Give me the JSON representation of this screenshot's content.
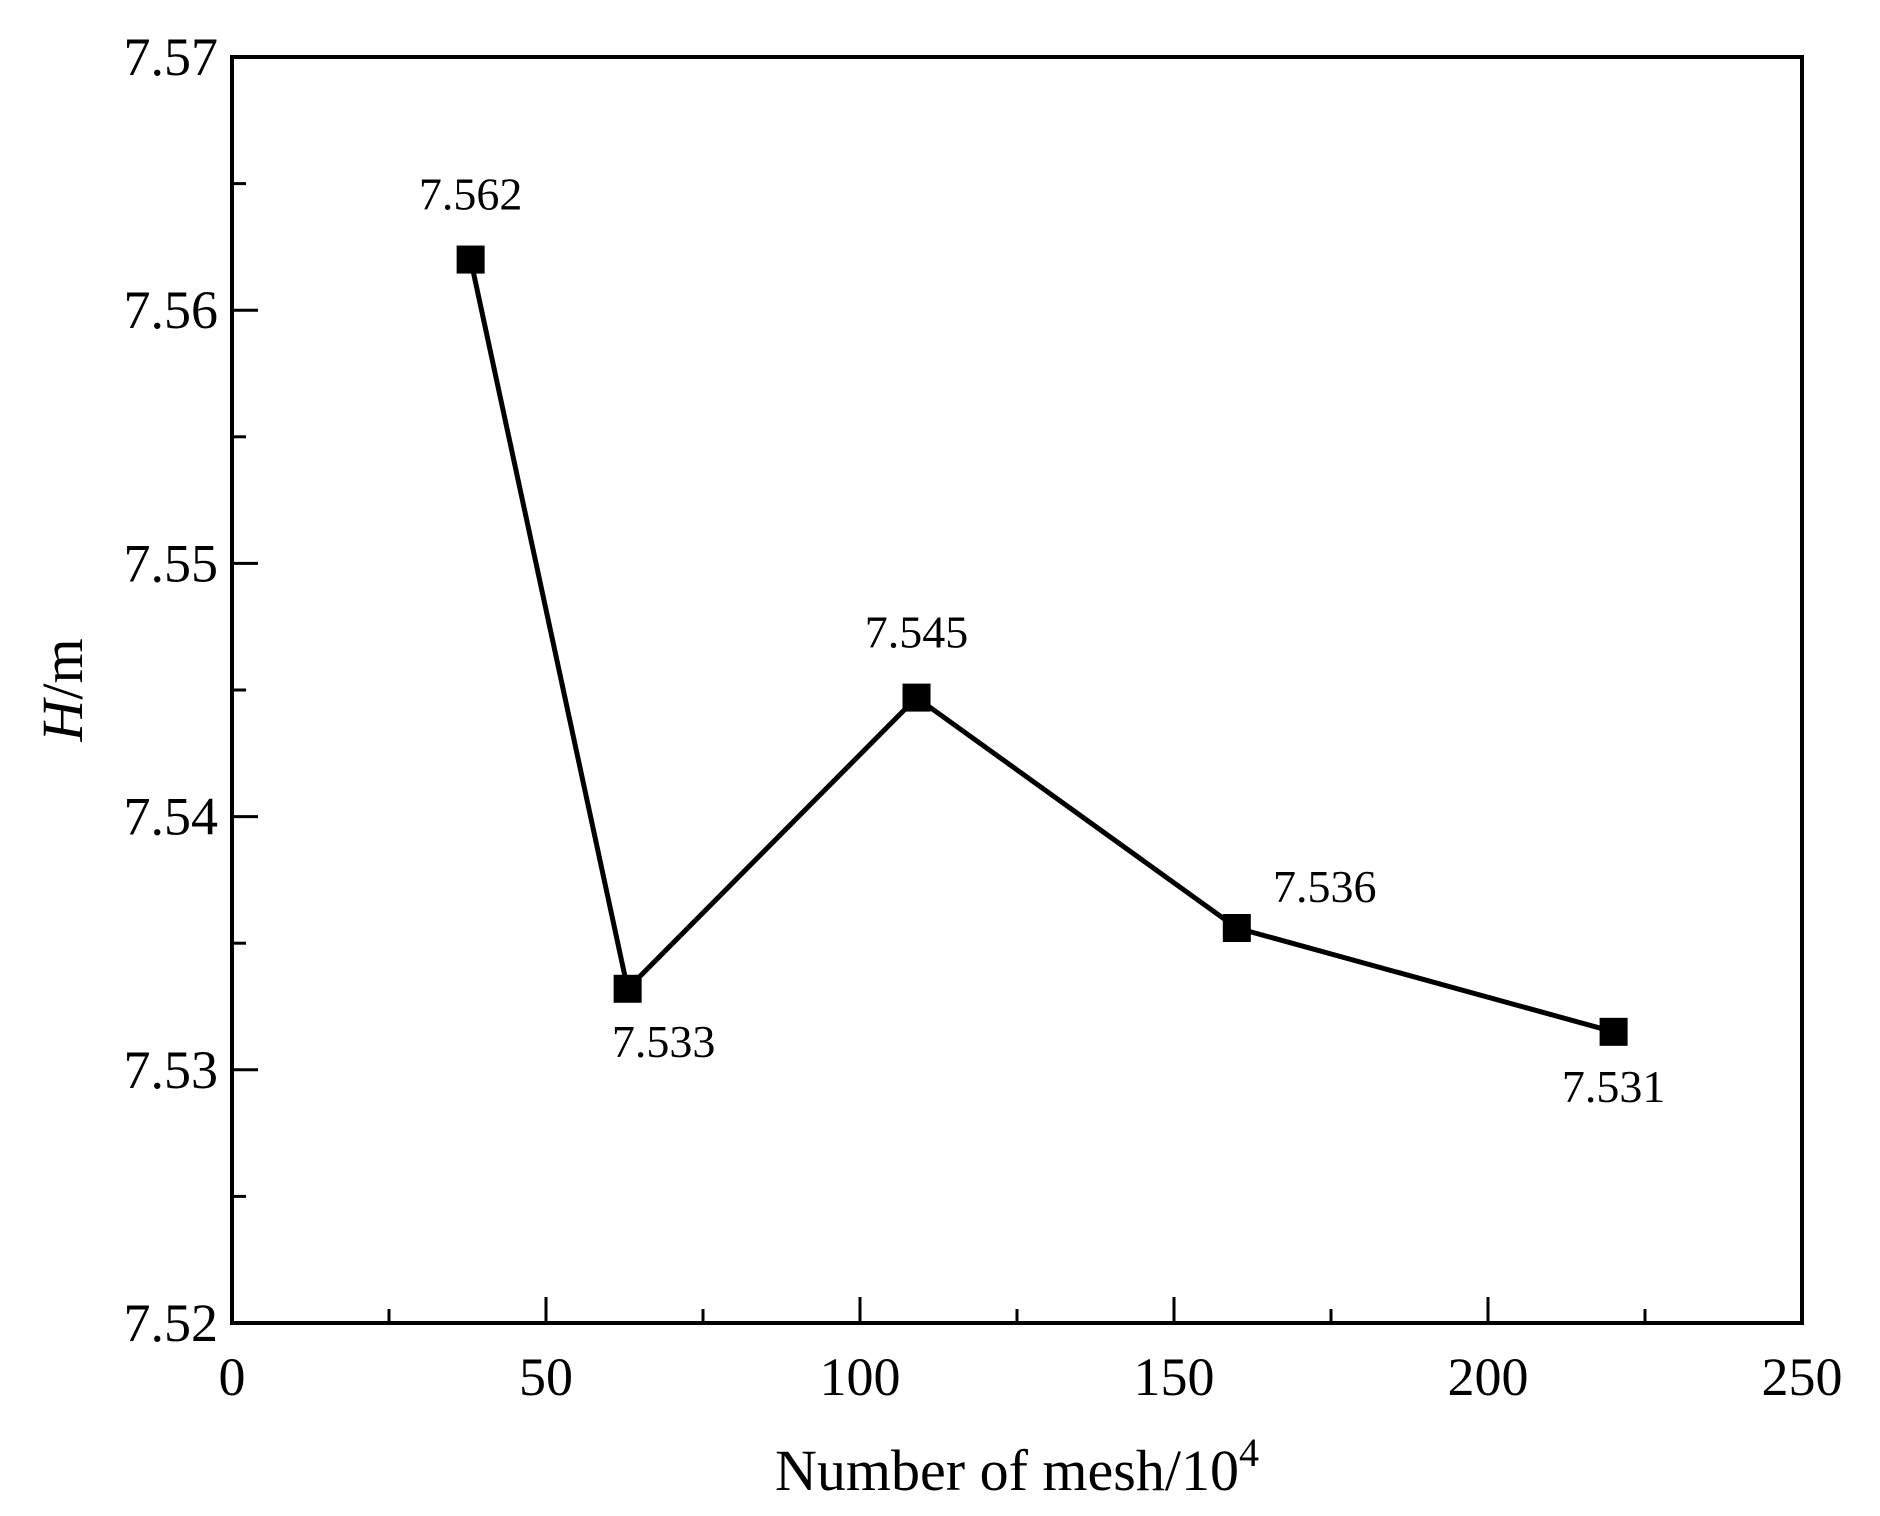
{
  "chart_data": {
    "type": "line",
    "title": "",
    "xlabel_main": "Number of mesh/10",
    "xlabel_sup": "4",
    "ylabel_italic": "H",
    "ylabel_rest": "/m",
    "x": [
      38,
      63,
      109,
      160,
      220
    ],
    "series": [
      {
        "name": "H",
        "values": [
          7.562,
          7.5332,
          7.5447,
          7.5356,
          7.5315
        ],
        "labels": [
          "7.562",
          "7.533",
          "7.545",
          "7.536",
          "7.531"
        ]
      }
    ],
    "xlim": [
      0,
      250
    ],
    "ylim": [
      7.52,
      7.57
    ],
    "xticks": [
      0,
      50,
      100,
      150,
      200,
      250
    ],
    "xtick_labels": [
      "0",
      "50",
      "100",
      "150",
      "200",
      "250"
    ],
    "yticks": [
      7.52,
      7.53,
      7.54,
      7.55,
      7.56,
      7.57
    ],
    "ytick_labels": [
      "7.52",
      "7.53",
      "7.54",
      "7.55",
      "7.56",
      "7.57"
    ],
    "grid": false,
    "marker": "square",
    "line_color": "#000000"
  }
}
